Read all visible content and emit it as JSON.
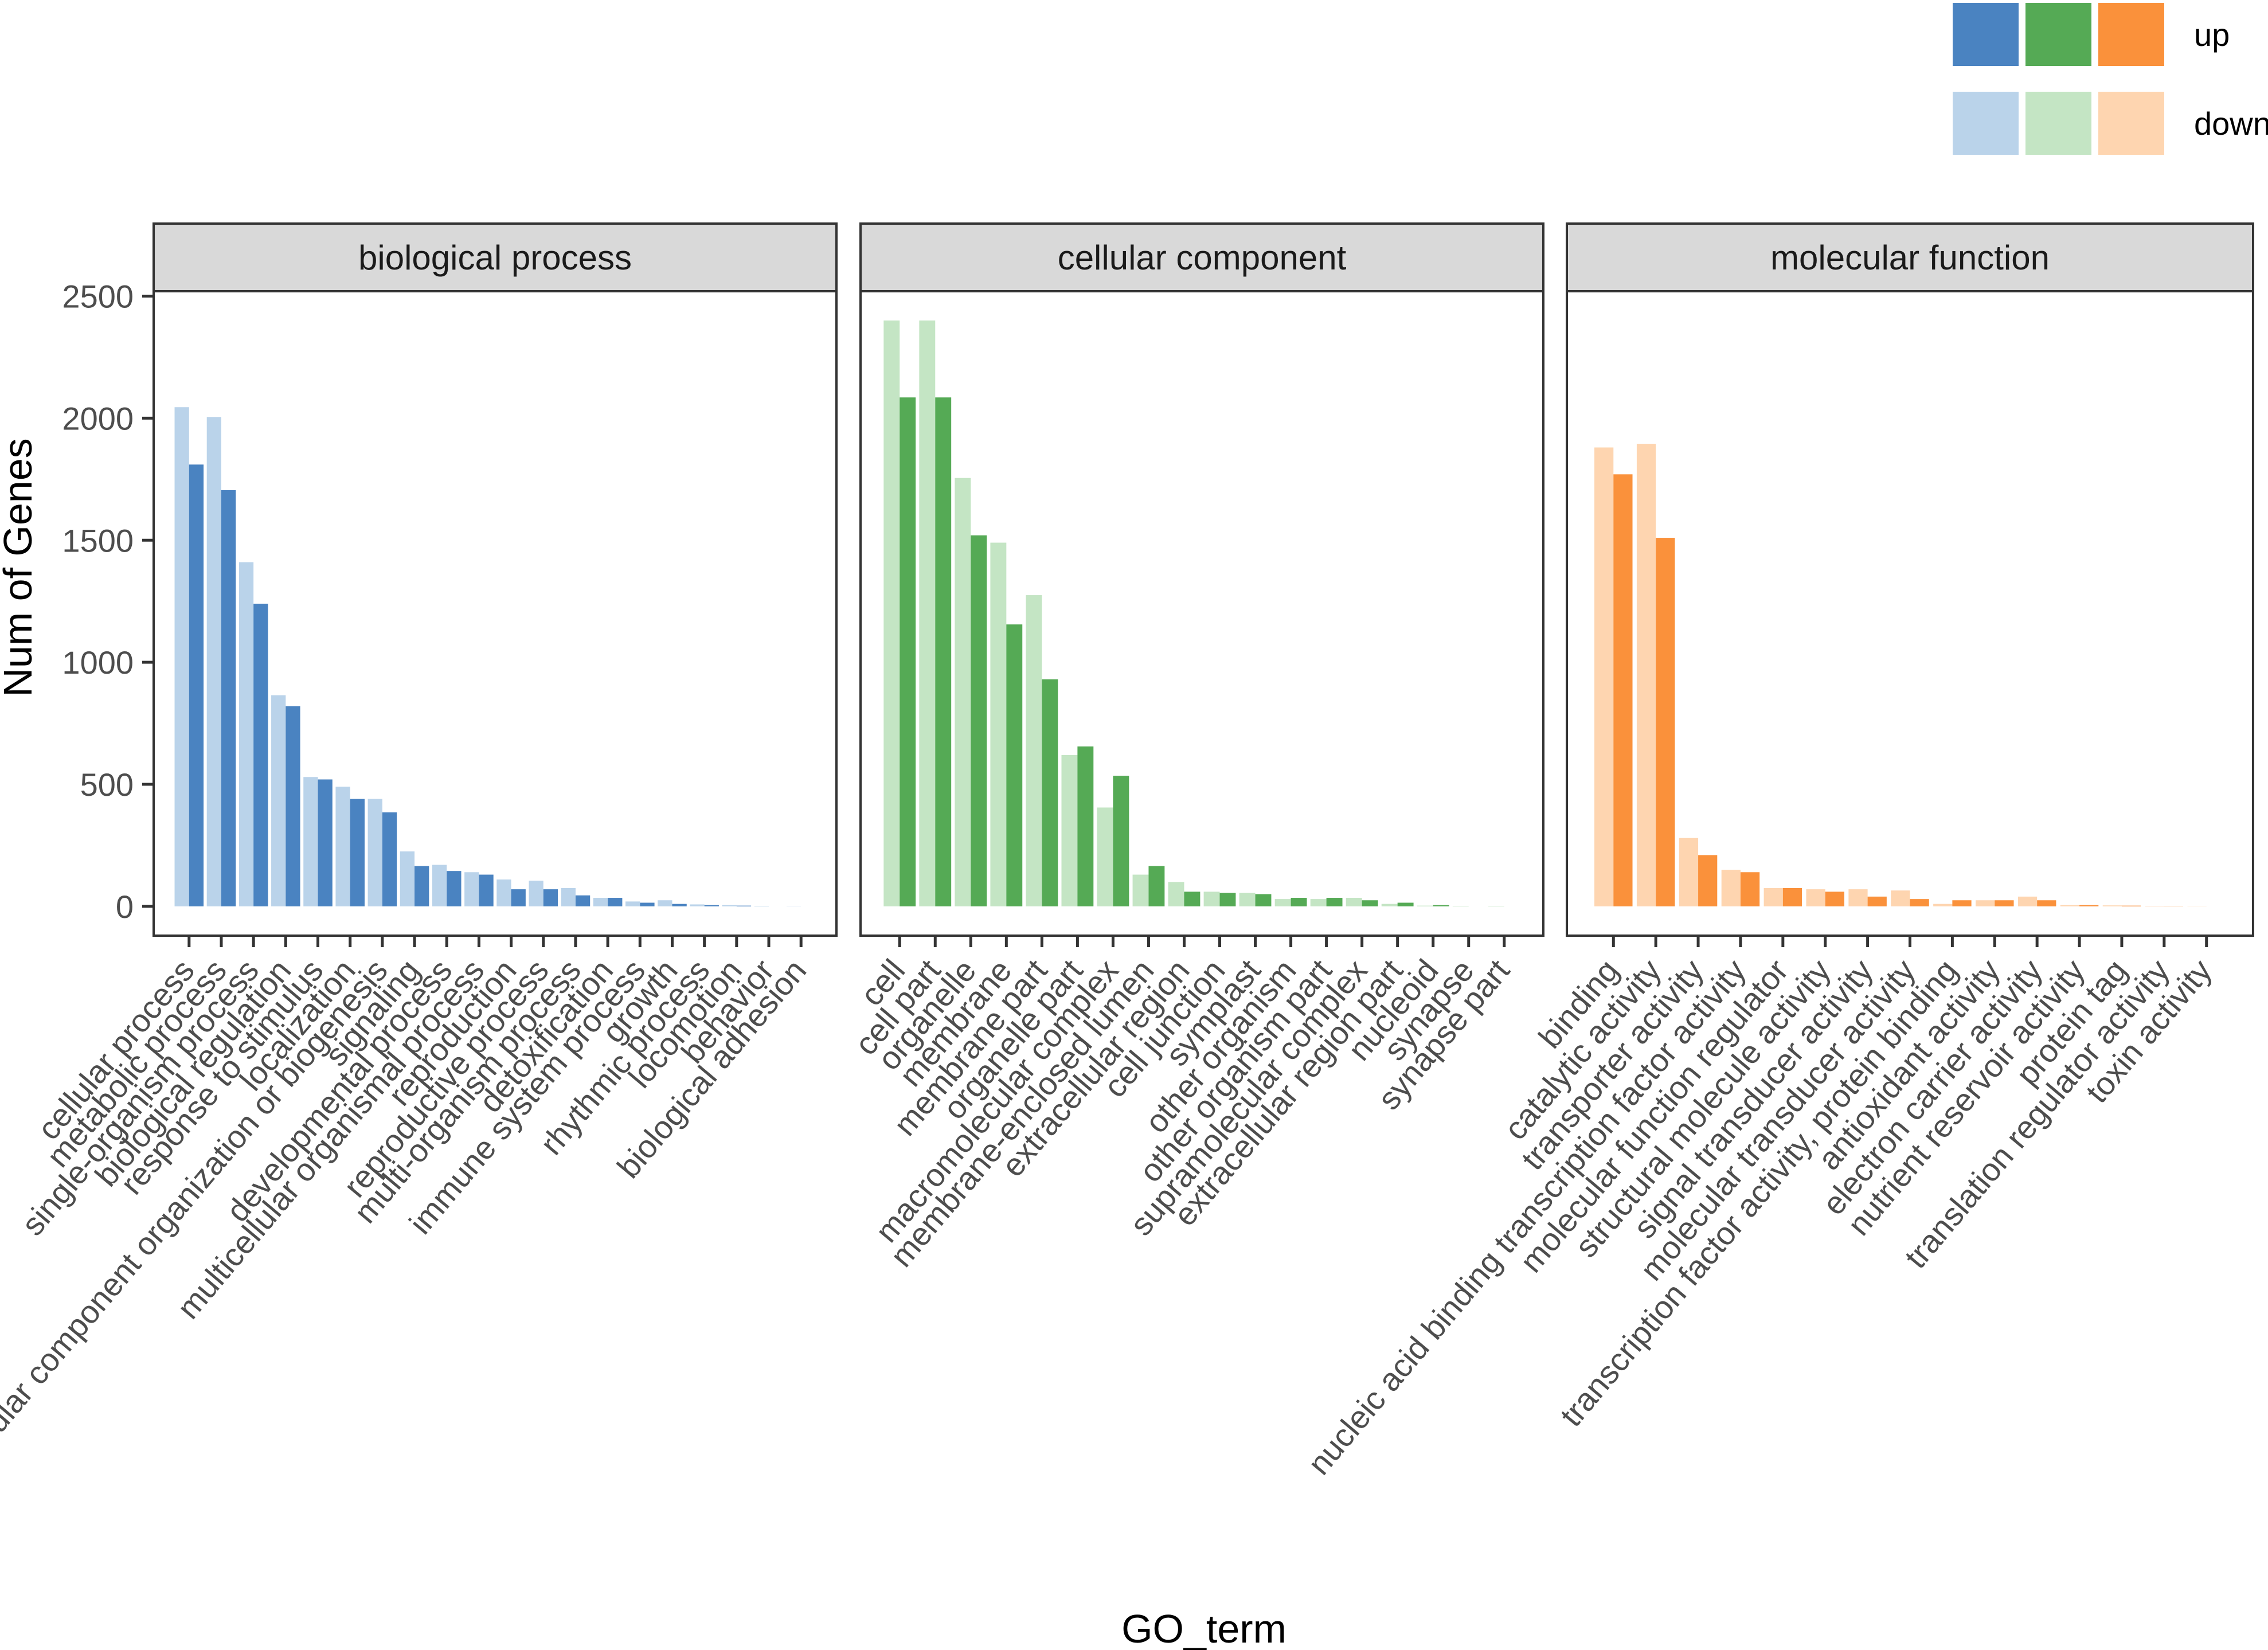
{
  "chart_data": {
    "type": "bar",
    "xlabel": "GO_term",
    "ylabel": "Num of Genes",
    "ylim": [
      -120,
      2520
    ],
    "yticks": [
      0,
      500,
      1000,
      1500,
      2000,
      2500
    ],
    "legend": {
      "placement": "top-right",
      "entries": [
        {
          "label": "up",
          "colors": [
            "#4a83c1",
            "#55aa55",
            "#fa913b"
          ]
        },
        {
          "label": "down",
          "colors": [
            "#bad3ea",
            "#c4e5c4",
            "#fed5b0"
          ]
        }
      ]
    },
    "facets": [
      {
        "name": "biological process",
        "categories": [
          "cellular process",
          "metabolic process",
          "single-organism process",
          "biological regulation",
          "response to stimulus",
          "localization",
          "cellular component organization or biogenesis",
          "signaling",
          "developmental process",
          "multicellular organismal process",
          "reproduction",
          "reproductive process",
          "multi-organism process",
          "detoxification",
          "immune system process",
          "growth",
          "rhythmic process",
          "locomotion",
          "behavior",
          "biological adhesion"
        ],
        "series": [
          {
            "name": "down",
            "values": [
              2045,
              2005,
              1410,
              865,
              530,
              490,
              440,
              225,
              170,
              140,
              110,
              105,
              75,
              35,
              20,
              25,
              8,
              5,
              2,
              1
            ]
          },
          {
            "name": "up",
            "values": [
              1810,
              1705,
              1240,
              820,
              520,
              440,
              385,
              165,
              145,
              130,
              70,
              70,
              45,
              35,
              15,
              10,
              5,
              3,
              0,
              0
            ]
          }
        ]
      },
      {
        "name": "cellular component",
        "categories": [
          "cell",
          "cell part",
          "organelle",
          "membrane",
          "membrane part",
          "organelle part",
          "macromolecular complex",
          "membrane-enclosed lumen",
          "extracellular region",
          "cell junction",
          "symplast",
          "other organism",
          "other organism part",
          "supramolecular complex",
          "extracellular region part",
          "nucleoid",
          "synapse",
          "synapse part"
        ],
        "series": [
          {
            "name": "down",
            "values": [
              2400,
              2400,
              1755,
              1490,
              1275,
              620,
              405,
              130,
              100,
              60,
              55,
              30,
              30,
              35,
              10,
              3,
              2,
              2
            ]
          },
          {
            "name": "up",
            "values": [
              2085,
              2085,
              1520,
              1155,
              930,
              655,
              535,
              165,
              60,
              55,
              50,
              35,
              35,
              25,
              15,
              5,
              0,
              0
            ]
          }
        ]
      },
      {
        "name": "molecular function",
        "categories": [
          "binding",
          "catalytic activity",
          "transporter activity",
          "nucleic acid binding transcription factor activity",
          "molecular function regulator",
          "structural molecule activity",
          "signal transducer activity",
          "molecular transducer activity",
          "transcription factor activity, protein binding",
          "antioxidant activity",
          "electron carrier activity",
          "nutrient reservoir activity",
          "protein tag",
          "translation regulator activity",
          "toxin activity"
        ],
        "series": [
          {
            "name": "down",
            "values": [
              1880,
              1895,
              280,
              150,
              75,
              70,
              70,
              65,
              10,
              25,
              40,
              5,
              4,
              2,
              1
            ]
          },
          {
            "name": "up",
            "values": [
              1770,
              1510,
              210,
              140,
              75,
              60,
              40,
              30,
              25,
              25,
              25,
              5,
              3,
              1,
              0
            ]
          }
        ]
      }
    ]
  }
}
